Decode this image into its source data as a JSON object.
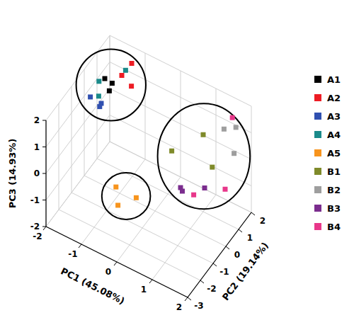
{
  "chart_data": {
    "type": "scatter3d",
    "x_label": "PC1 (45.08%)",
    "y_label": "PC2 (19.14%)",
    "z_label": "PC3 (14.93%)",
    "xlim": [
      -2,
      2
    ],
    "xticks": [
      -2,
      -1,
      0,
      1,
      2
    ],
    "ylim": [
      -3,
      2
    ],
    "yticks": [
      -3,
      -2,
      -1,
      0,
      1,
      2
    ],
    "zlim": [
      -2,
      2
    ],
    "zticks": [
      -2,
      -1,
      0,
      1,
      2
    ],
    "grid": true,
    "legend": "right",
    "marker": "square",
    "series": [
      {
        "name": "A1",
        "color": "#000000",
        "x": [
          -1.6,
          -1.4,
          -1.5
        ],
        "y": [
          0.5,
          0.3,
          0.8
        ],
        "z": [
          1.6,
          1.4,
          1.3
        ]
      },
      {
        "name": "A2",
        "color": "#ed1c24",
        "x": [
          -1.2,
          -1.1,
          -1.3
        ],
        "y": [
          1.5,
          1.2,
          1.0
        ],
        "z": [
          1.8,
          1.2,
          1.6
        ]
      },
      {
        "name": "A3",
        "color": "#3050b0",
        "x": [
          -1.9,
          -1.7,
          -1.6
        ],
        "y": [
          0.2,
          0.5,
          0.1
        ],
        "z": [
          0.9,
          0.6,
          0.8
        ]
      },
      {
        "name": "A4",
        "color": "#1a8a8a",
        "x": [
          -1.8,
          -1.3,
          -1.7
        ],
        "y": [
          0.6,
          1.3,
          0.3
        ],
        "z": [
          1.3,
          1.6,
          1.0
        ]
      },
      {
        "name": "A5",
        "color": "#f7941d",
        "x": [
          -0.6,
          -0.4,
          -0.1
        ],
        "y": [
          -1.4,
          -1.8,
          -1.2
        ],
        "z": [
          -0.6,
          -0.9,
          -0.8
        ]
      },
      {
        "name": "B1",
        "color": "#7f8a2a",
        "x": [
          0.4,
          1.0,
          1.4
        ],
        "y": [
          0.2,
          1.0,
          0.6
        ],
        "z": [
          0.4,
          0.9,
          0.2
        ]
      },
      {
        "name": "B2",
        "color": "#9e9e9e",
        "x": [
          1.3,
          1.6,
          1.8
        ],
        "y": [
          1.8,
          1.9,
          1.2
        ],
        "z": [
          0.8,
          1.0,
          0.6
        ]
      },
      {
        "name": "B3",
        "color": "#7b2d8e",
        "x": [
          0.9,
          0.95,
          1.4
        ],
        "y": [
          -0.5,
          -0.5,
          0.0
        ],
        "z": [
          -0.2,
          -0.3,
          -0.2
        ]
      },
      {
        "name": "B4",
        "color": "#e8378a",
        "x": [
          1.5,
          1.2,
          1.8
        ],
        "y": [
          1.9,
          -0.3,
          0.5
        ],
        "z": [
          1.3,
          -0.4,
          -0.3
        ]
      }
    ]
  }
}
